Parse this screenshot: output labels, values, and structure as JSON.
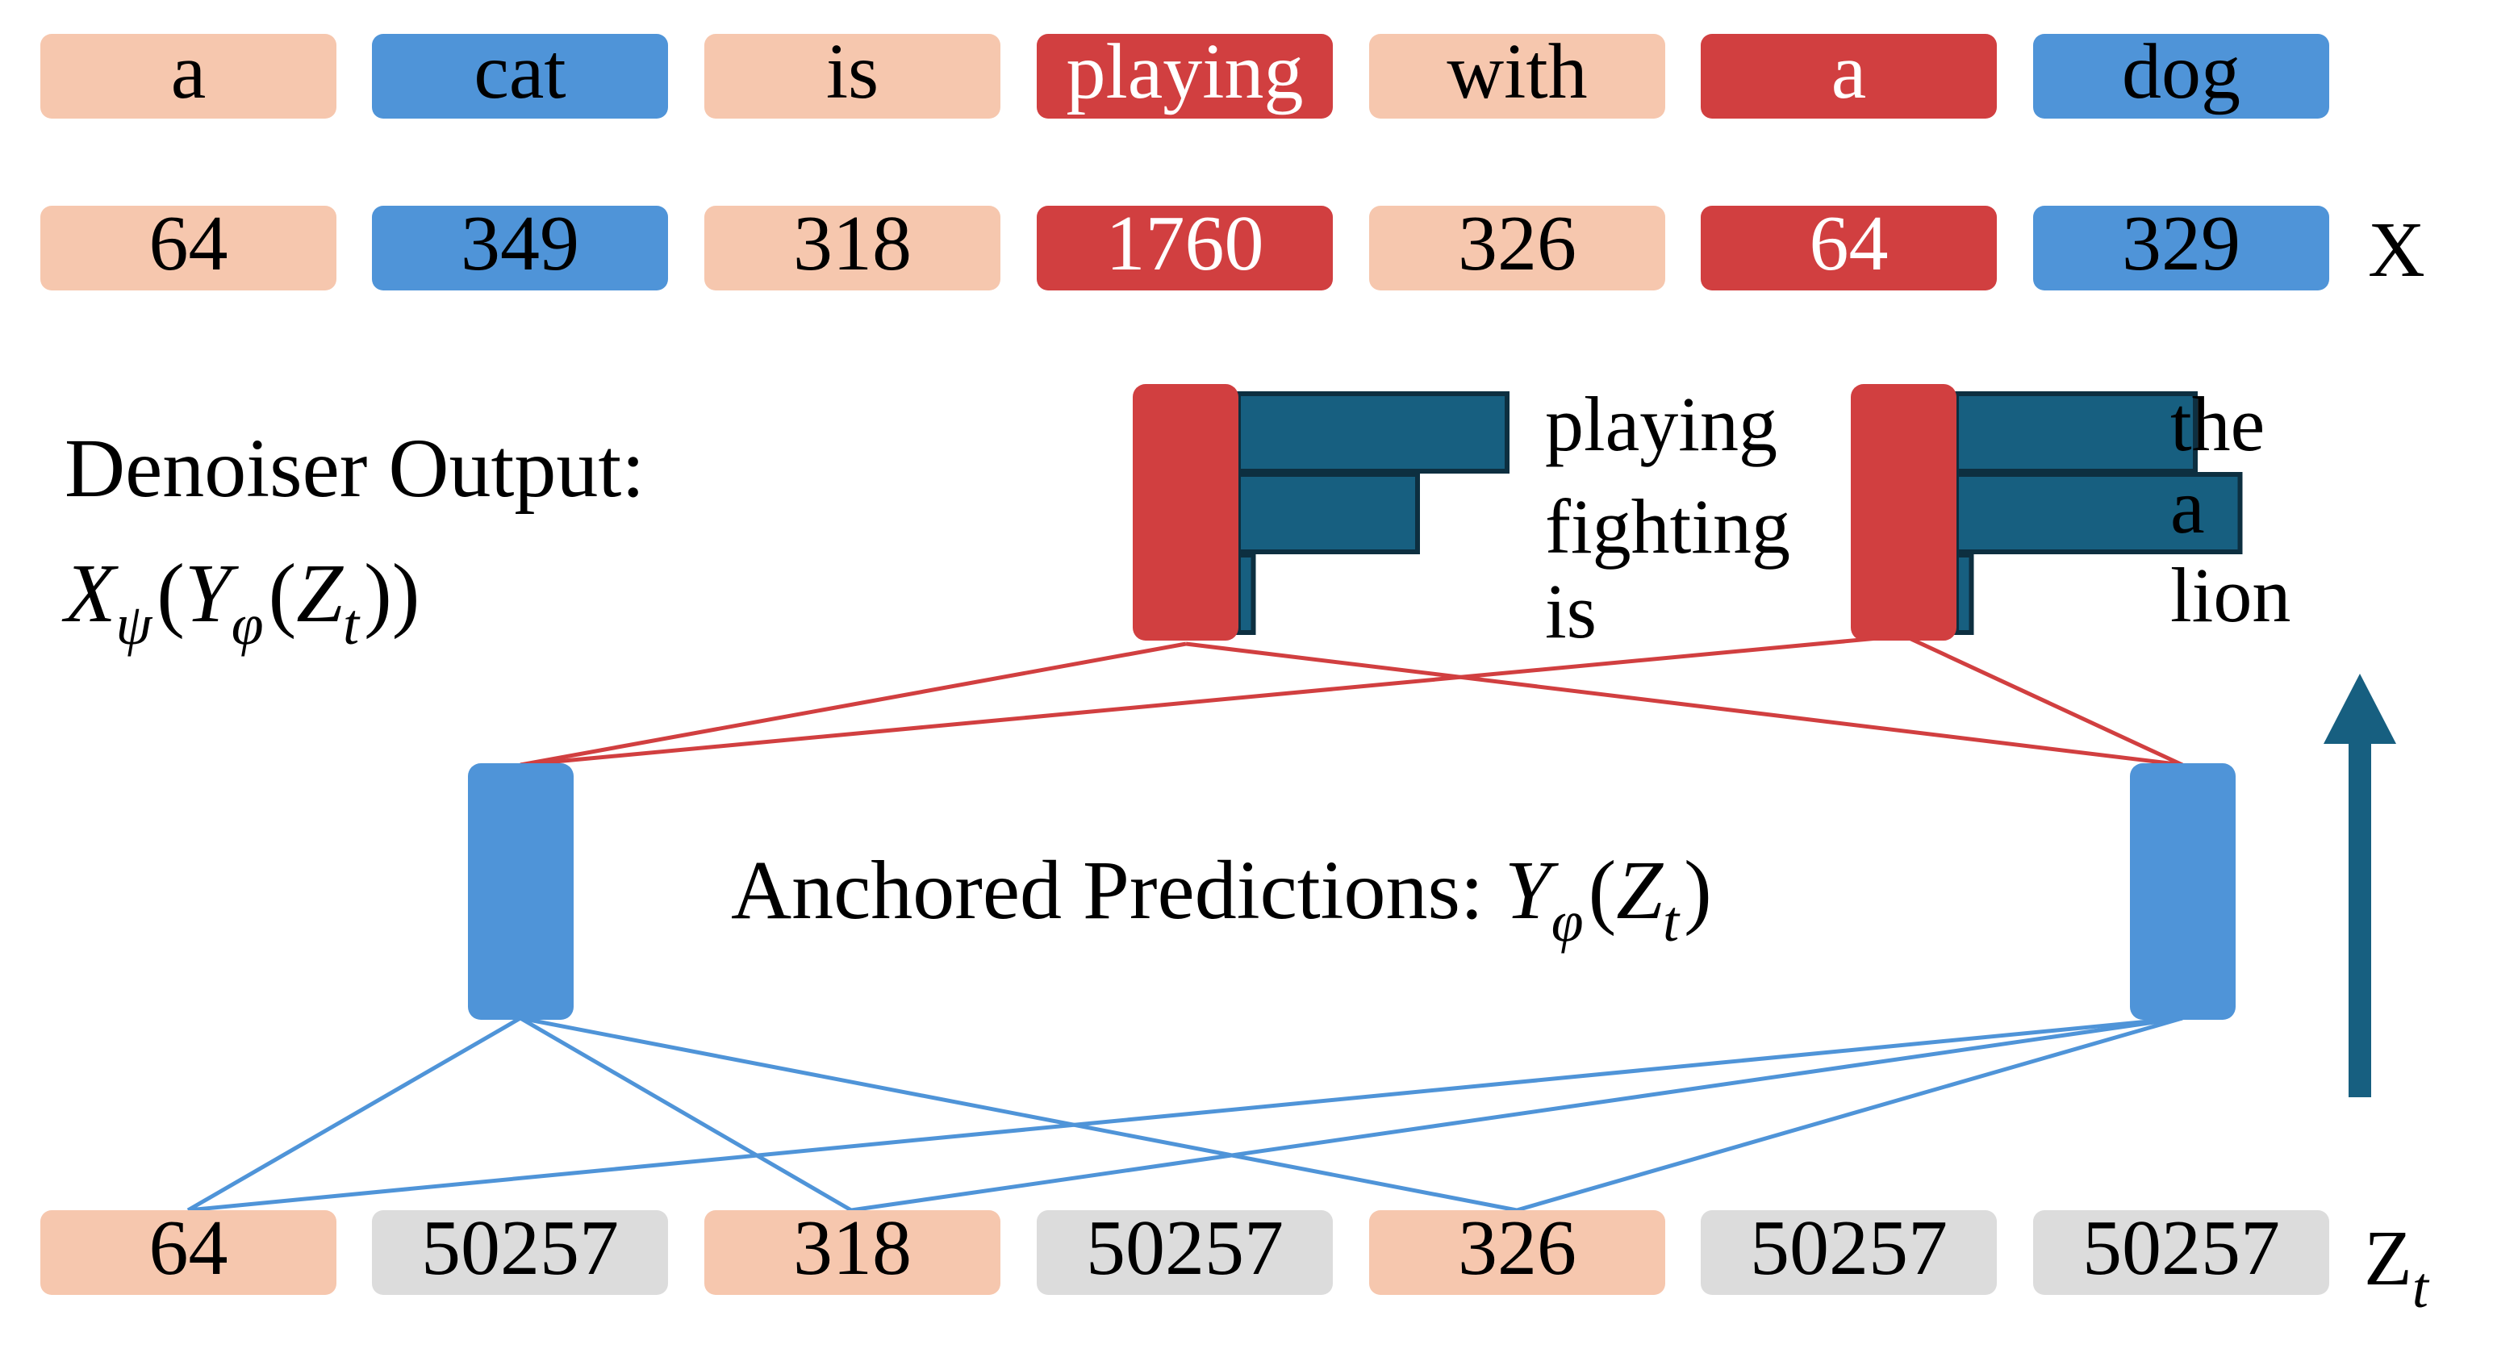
{
  "colors": {
    "peach": "#f6c7ae",
    "blue": "#4f94d8",
    "red": "#d13f40",
    "gray": "#dcdcdc",
    "bar": "#175f80",
    "bar_stroke": "#0d2f40",
    "arrow": "#175f80",
    "red_line": "#d13f40",
    "blue_line": "#4f94d8",
    "text_dark": "#000000",
    "text_light": "#ffffff"
  },
  "words": [
    {
      "text": "a",
      "color": "peach"
    },
    {
      "text": "cat",
      "color": "blue"
    },
    {
      "text": "is",
      "color": "peach"
    },
    {
      "text": "playing",
      "color": "red"
    },
    {
      "text": "with",
      "color": "peach"
    },
    {
      "text": "a",
      "color": "red"
    },
    {
      "text": "dog",
      "color": "blue"
    }
  ],
  "ids": [
    {
      "text": "64",
      "color": "peach"
    },
    {
      "text": "349",
      "color": "blue"
    },
    {
      "text": "318",
      "color": "peach"
    },
    {
      "text": "1760",
      "color": "red"
    },
    {
      "text": "326",
      "color": "peach"
    },
    {
      "text": "64",
      "color": "red"
    },
    {
      "text": "329",
      "color": "blue"
    }
  ],
  "x_label": "X",
  "noisy": [
    {
      "text": "64",
      "color": "peach"
    },
    {
      "text": "50257",
      "color": "gray"
    },
    {
      "text": "318",
      "color": "peach"
    },
    {
      "text": "50257",
      "color": "gray"
    },
    {
      "text": "326",
      "color": "peach"
    },
    {
      "text": "50257",
      "color": "gray"
    },
    {
      "text": "50257",
      "color": "gray"
    }
  ],
  "zt_label": {
    "main": "Z",
    "sub": "t"
  },
  "denoiser": {
    "title": "Denoiser Output:",
    "formula": {
      "X": "X",
      "psi": "ψ",
      "lp1": "(",
      "Y": "Y",
      "phi": "φ",
      "lp2": "(",
      "Z": "Z",
      "t": "t",
      "rp": "))"
    }
  },
  "anchored": {
    "text": "Anchored Predictions: ",
    "formula": {
      "Y": "Y",
      "phi": "φ",
      "lp": "(",
      "Z": "Z",
      "t": "t",
      "rp": ")"
    }
  },
  "histograms": [
    {
      "candidates": [
        "playing",
        "fighting",
        "is"
      ],
      "probabilities": [
        0.9,
        0.6,
        0.05
      ]
    },
    {
      "candidates": [
        "the",
        "a",
        "lion"
      ],
      "probabilities": [
        0.8,
        0.95,
        0.05
      ]
    }
  ]
}
